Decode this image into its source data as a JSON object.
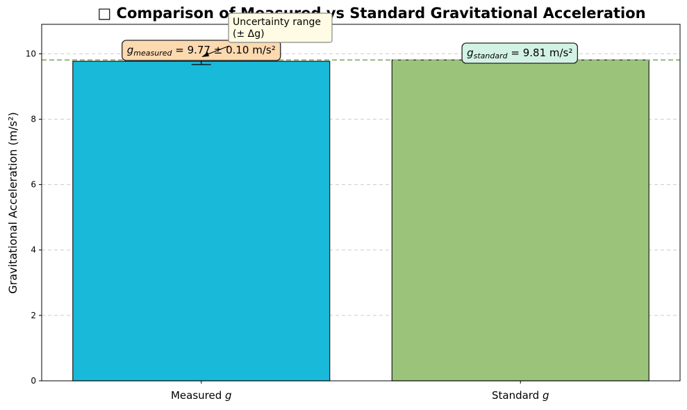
{
  "chart_data": {
    "type": "bar",
    "title": "Comparison of Measured vs Standard Gravitational Acceleration",
    "title_glyph": "□",
    "ylabel": "Gravitational Acceleration (m/s²)",
    "xlabel": "",
    "categories": [
      {
        "prefix": "Measured ",
        "sym": "g"
      },
      {
        "prefix": "Standard ",
        "sym": "g"
      }
    ],
    "values": [
      9.77,
      9.81
    ],
    "errors": [
      0.1,
      0
    ],
    "colors": [
      "#18b9d9",
      "#9bc47a"
    ],
    "ylim": [
      0,
      10.9
    ],
    "yticks": [
      0,
      2,
      4,
      6,
      8,
      10
    ],
    "grid": "y-dashed",
    "reference_line": {
      "value": 9.81,
      "color": "#8db37a"
    },
    "annotations": {
      "measured": {
        "g": "g",
        "sub": "measured",
        "rest": " = 9.77 ± 0.10 m/s²",
        "bg": "#fdd9b0"
      },
      "standard": {
        "g": "g",
        "sub": "standard",
        "rest": " = 9.81 m/s²",
        "bg": "#d2f3e3"
      },
      "uncertainty": {
        "line1": "Uncertainty range",
        "line2": "(± Δg)",
        "bg": "#fffbe4"
      }
    }
  }
}
